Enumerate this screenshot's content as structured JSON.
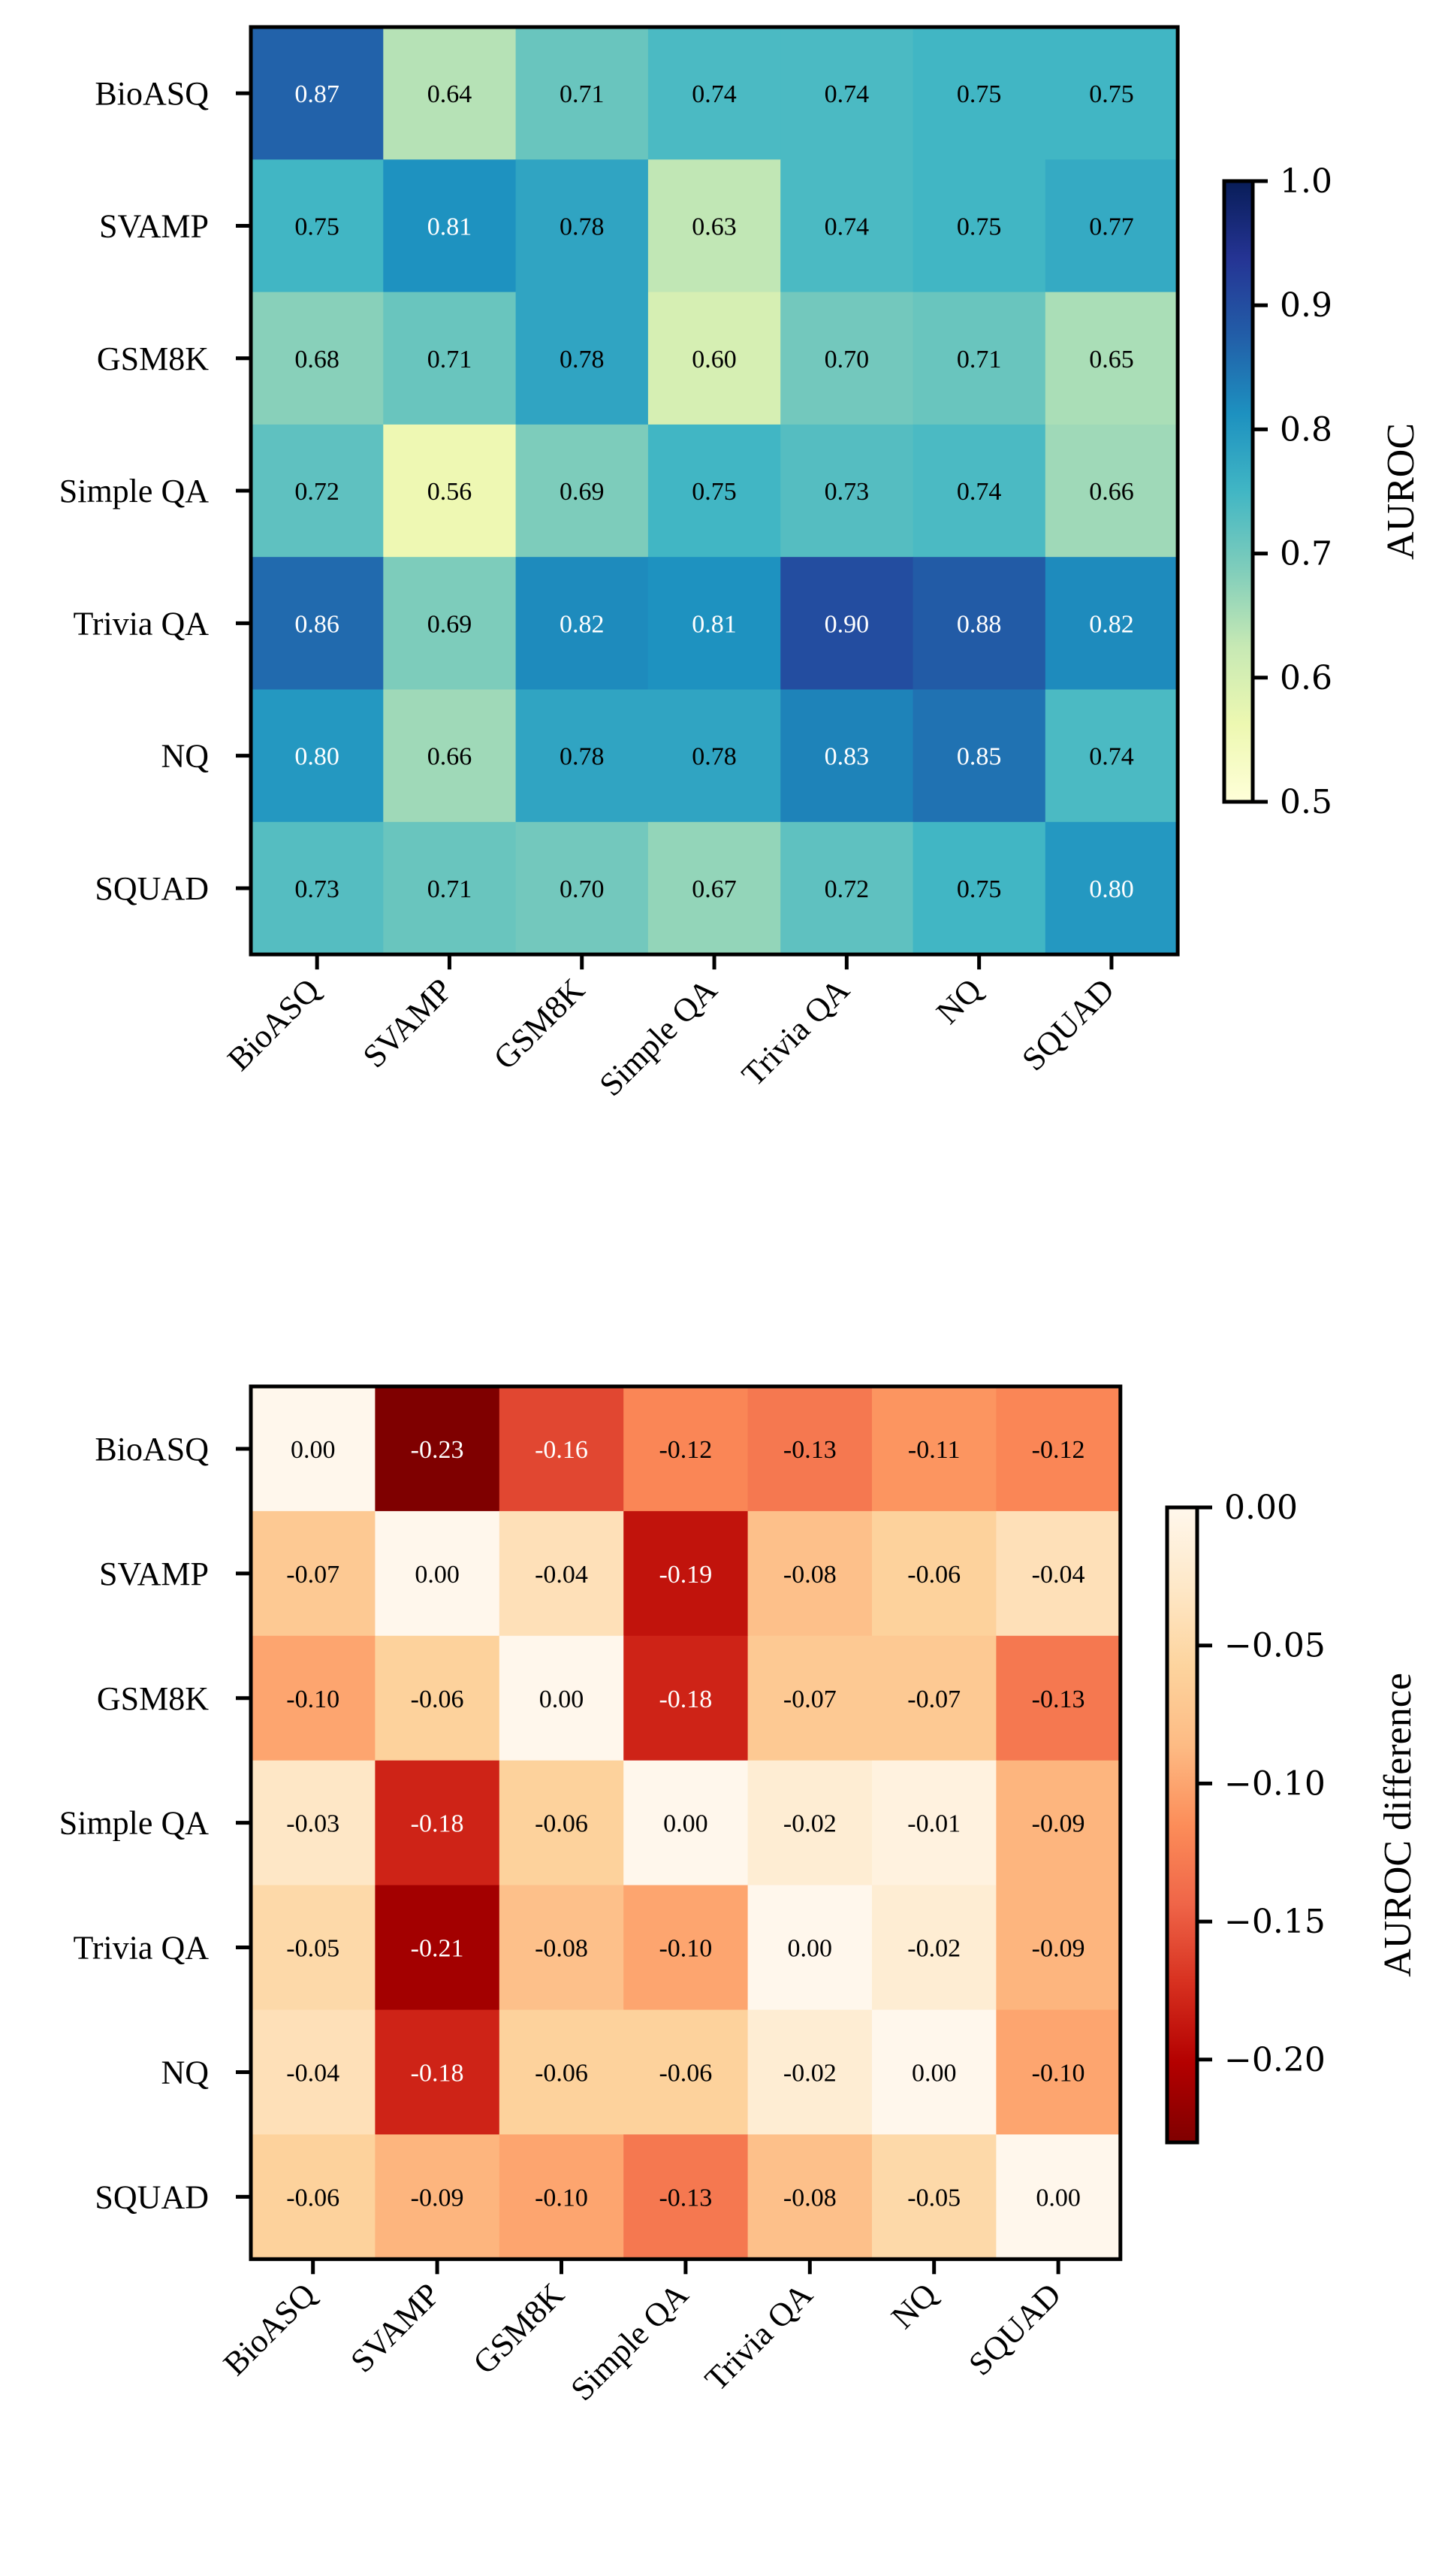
{
  "chart_data": [
    {
      "type": "heatmap",
      "title": "",
      "xlabel": "",
      "ylabel": "",
      "rows": [
        "BioASQ",
        "SVAMP",
        "GSM8K",
        "Simple QA",
        "Trivia QA",
        "NQ",
        "SQUAD"
      ],
      "cols": [
        "BioASQ",
        "SVAMP",
        "GSM8K",
        "Simple QA",
        "Trivia QA",
        "NQ",
        "SQUAD"
      ],
      "values": [
        [
          0.87,
          0.64,
          0.71,
          0.74,
          0.74,
          0.75,
          0.75
        ],
        [
          0.75,
          0.81,
          0.78,
          0.63,
          0.74,
          0.75,
          0.77
        ],
        [
          0.68,
          0.71,
          0.78,
          0.6,
          0.7,
          0.71,
          0.65
        ],
        [
          0.72,
          0.56,
          0.69,
          0.75,
          0.73,
          0.74,
          0.66
        ],
        [
          0.86,
          0.69,
          0.82,
          0.81,
          0.9,
          0.88,
          0.82
        ],
        [
          0.8,
          0.66,
          0.78,
          0.78,
          0.83,
          0.85,
          0.74
        ],
        [
          0.73,
          0.71,
          0.7,
          0.67,
          0.72,
          0.75,
          0.8
        ]
      ],
      "value_format": "2",
      "colormap": "YlGnBu",
      "vmin": 0.5,
      "vmax": 1.0,
      "colorbar": {
        "label": "AUROC",
        "ticks": [
          0.5,
          0.6,
          0.7,
          0.8,
          0.9,
          1.0
        ],
        "tick_labels": [
          "0.5",
          "0.6",
          "0.7",
          "0.8",
          "0.9",
          "1.0"
        ]
      }
    },
    {
      "type": "heatmap",
      "title": "",
      "xlabel": "",
      "ylabel": "",
      "rows": [
        "BioASQ",
        "SVAMP",
        "GSM8K",
        "Simple QA",
        "Trivia QA",
        "NQ",
        "SQUAD"
      ],
      "cols": [
        "BioASQ",
        "SVAMP",
        "GSM8K",
        "Simple QA",
        "Trivia QA",
        "NQ",
        "SQUAD"
      ],
      "values": [
        [
          0.0,
          -0.23,
          -0.16,
          -0.12,
          -0.13,
          -0.11,
          -0.12
        ],
        [
          -0.07,
          0.0,
          -0.04,
          -0.19,
          -0.08,
          -0.06,
          -0.04
        ],
        [
          -0.1,
          -0.06,
          0.0,
          -0.18,
          -0.07,
          -0.07,
          -0.13
        ],
        [
          -0.03,
          -0.18,
          -0.06,
          0.0,
          -0.02,
          -0.01,
          -0.09
        ],
        [
          -0.05,
          -0.21,
          -0.08,
          -0.1,
          0.0,
          -0.02,
          -0.09
        ],
        [
          -0.04,
          -0.18,
          -0.06,
          -0.06,
          -0.02,
          0.0,
          -0.1
        ],
        [
          -0.06,
          -0.09,
          -0.1,
          -0.13,
          -0.08,
          -0.05,
          0.0
        ]
      ],
      "value_format": "2",
      "colormap": "OrRd_r",
      "vmin": -0.23,
      "vmax": 0.0,
      "colorbar": {
        "label": "AUROC difference",
        "ticks": [
          0.0,
          -0.05,
          -0.1,
          -0.15,
          -0.2
        ],
        "tick_labels": [
          "0.00",
          "−0.05",
          "−0.10",
          "−0.15",
          "−0.20"
        ]
      }
    }
  ]
}
